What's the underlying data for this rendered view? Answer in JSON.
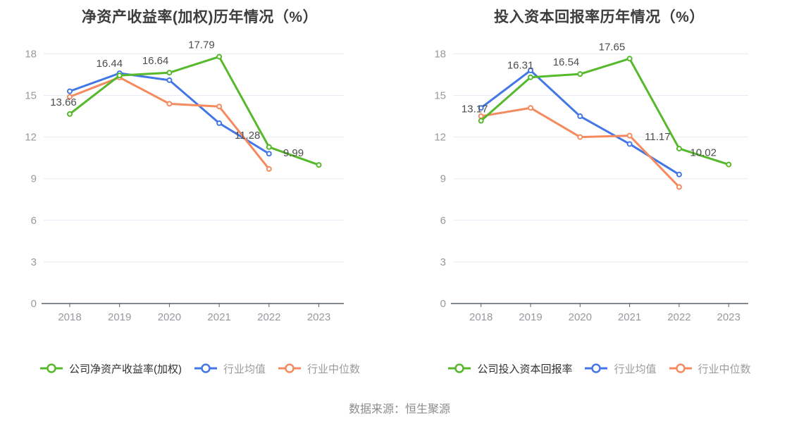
{
  "footer": {
    "source": "数据来源：恒生聚源"
  },
  "chart_data": [
    {
      "type": "line",
      "title": "净资产收益率(加权)历年情况（%）",
      "categories": [
        "2018",
        "2019",
        "2020",
        "2021",
        "2022",
        "2023"
      ],
      "xlabel": "",
      "ylabel": "",
      "ylim": [
        0,
        18
      ],
      "y_ticks": [
        0,
        3,
        6,
        9,
        12,
        15,
        18
      ],
      "grid": true,
      "legend_position": "bottom",
      "series": [
        {
          "name": "公司净资产收益率(加权)",
          "color": "#56b92b",
          "marker": "hollow-circle",
          "data_labels": true,
          "values": [
            13.66,
            16.44,
            16.64,
            17.79,
            11.28,
            9.99
          ]
        },
        {
          "name": "行业均值",
          "color": "#4377e6",
          "marker": "hollow-circle",
          "data_labels": false,
          "values": [
            15.3,
            16.6,
            16.1,
            13.0,
            10.8,
            null
          ]
        },
        {
          "name": "行业中位数",
          "color": "#f58a5e",
          "marker": "hollow-circle",
          "data_labels": false,
          "values": [
            14.9,
            16.3,
            14.4,
            14.2,
            9.7,
            null
          ]
        }
      ]
    },
    {
      "type": "line",
      "title": "投入资本回报率历年情况（%）",
      "categories": [
        "2018",
        "2019",
        "2020",
        "2021",
        "2022",
        "2023"
      ],
      "xlabel": "",
      "ylabel": "",
      "ylim": [
        0,
        18
      ],
      "y_ticks": [
        0,
        3,
        6,
        9,
        12,
        15,
        18
      ],
      "grid": true,
      "legend_position": "bottom",
      "series": [
        {
          "name": "公司投入资本回报率",
          "color": "#56b92b",
          "marker": "hollow-circle",
          "data_labels": true,
          "values": [
            13.17,
            16.31,
            16.54,
            17.65,
            11.17,
            10.02
          ]
        },
        {
          "name": "行业均值",
          "color": "#4377e6",
          "marker": "hollow-circle",
          "data_labels": false,
          "values": [
            14.1,
            16.8,
            13.5,
            11.5,
            9.3,
            null
          ]
        },
        {
          "name": "行业中位数",
          "color": "#f58a5e",
          "marker": "hollow-circle",
          "data_labels": false,
          "values": [
            13.5,
            14.1,
            12.0,
            12.1,
            8.4,
            null
          ]
        }
      ]
    }
  ]
}
